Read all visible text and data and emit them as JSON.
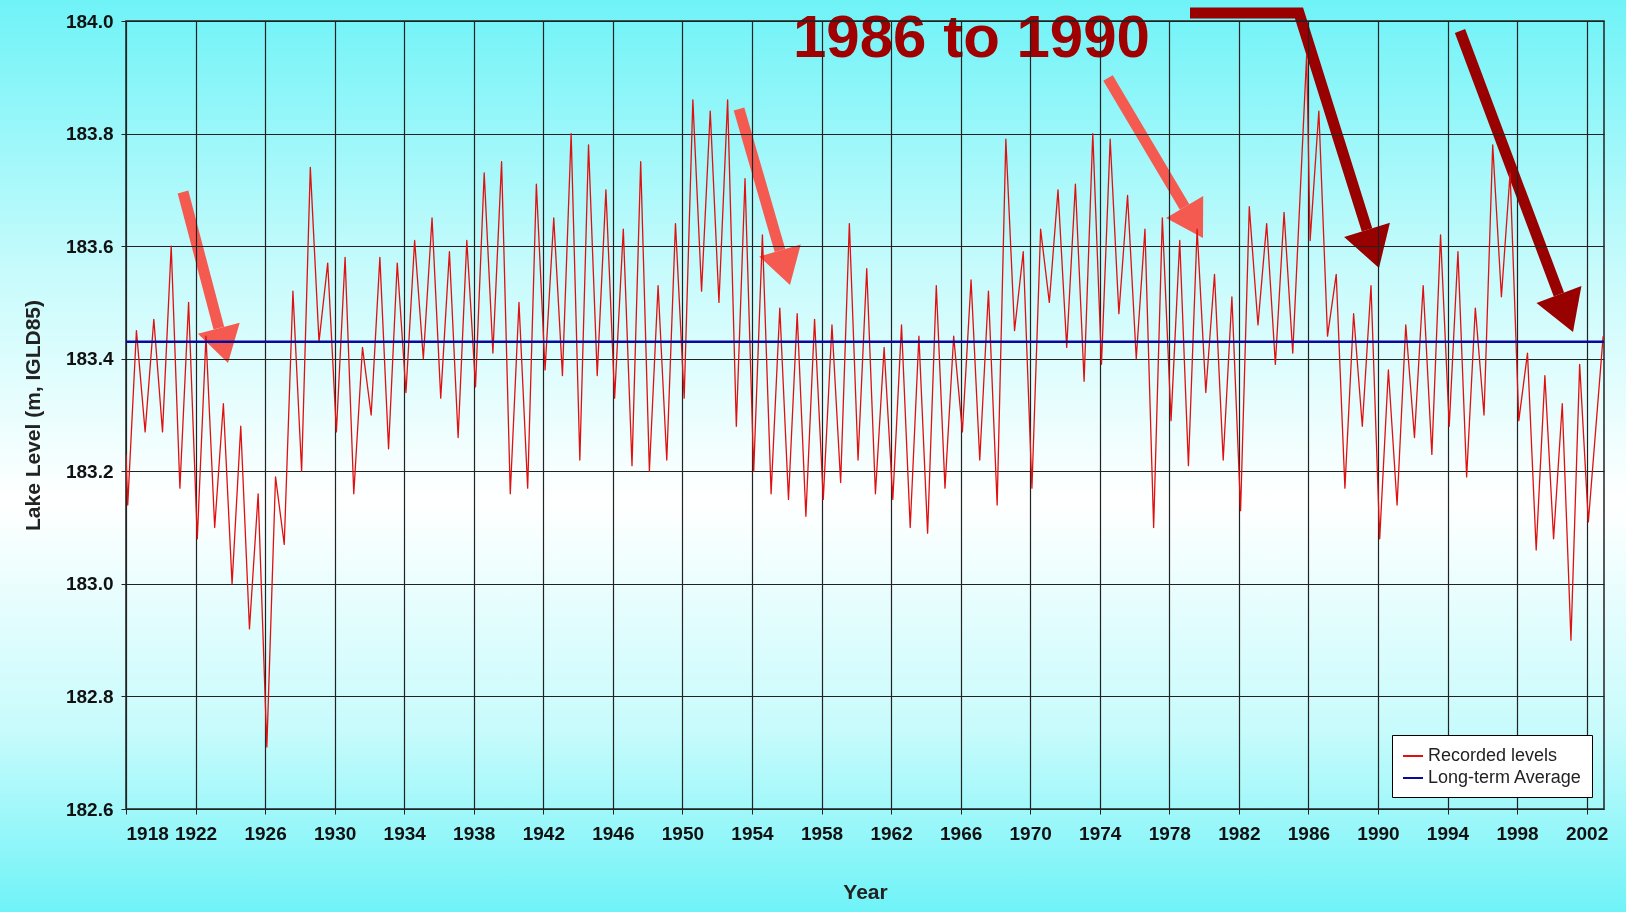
{
  "chart_data": {
    "type": "line",
    "xlabel": "Year",
    "ylabel": "Lake Level (m, IGLD85)",
    "annotations": [
      "1986 to 1990"
    ],
    "xlim": [
      1918,
      2003
    ],
    "xticks": [
      1918,
      1922,
      1926,
      1930,
      1934,
      1938,
      1942,
      1946,
      1950,
      1954,
      1958,
      1962,
      1966,
      1970,
      1974,
      1978,
      1982,
      1986,
      1990,
      1994,
      1998,
      2002
    ],
    "ylim": [
      182.6,
      184.0
    ],
    "yticks": [
      182.6,
      182.8,
      {
        "value": 183,
        "label": "183.0"
      },
      183.2,
      183.4,
      183.6,
      183.8,
      {
        "value": 184,
        "label": "184.0"
      }
    ],
    "grid": true,
    "legend": "bottom right",
    "series": [
      {
        "name": "Recorded levels",
        "color": "#e01010",
        "x": [
          1918.0,
          1918.1,
          1918.6,
          1919.1,
          1919.6,
          1920.1,
          1920.6,
          1921.1,
          1921.6,
          1922.1,
          1922.6,
          1923.1,
          1923.6,
          1924.1,
          1924.6,
          1925.1,
          1925.6,
          1926.1,
          1926.6,
          1927.1,
          1927.6,
          1928.1,
          1928.6,
          1929.1,
          1929.6,
          1930.1,
          1930.6,
          1931.1,
          1931.6,
          1932.1,
          1932.6,
          1933.1,
          1933.6,
          1934.1,
          1934.6,
          1935.1,
          1935.6,
          1936.1,
          1936.6,
          1937.1,
          1937.6,
          1938.1,
          1938.6,
          1939.1,
          1939.6,
          1940.1,
          1940.6,
          1941.1,
          1941.6,
          1942.1,
          1942.6,
          1943.1,
          1943.6,
          1944.1,
          1944.6,
          1945.1,
          1945.6,
          1946.1,
          1946.6,
          1947.1,
          1947.6,
          1948.1,
          1948.6,
          1949.1,
          1949.6,
          1950.1,
          1950.6,
          1951.1,
          1951.6,
          1952.1,
          1952.6,
          1953.1,
          1953.6,
          1954.1,
          1954.6,
          1955.1,
          1955.6,
          1956.1,
          1956.6,
          1957.1,
          1957.6,
          1958.1,
          1958.6,
          1959.1,
          1959.6,
          1960.1,
          1960.6,
          1961.1,
          1961.6,
          1962.1,
          1962.6,
          1963.1,
          1963.6,
          1964.1,
          1964.6,
          1965.1,
          1965.6,
          1966.1,
          1966.6,
          1967.1,
          1967.6,
          1968.1,
          1968.6,
          1969.1,
          1969.6,
          1970.1,
          1970.6,
          1971.1,
          1971.6,
          1972.1,
          1972.6,
          1973.1,
          1973.6,
          1974.1,
          1974.6,
          1975.1,
          1975.6,
          1976.1,
          1976.6,
          1977.1,
          1977.6,
          1978.1,
          1978.6,
          1979.1,
          1979.6,
          1980.1,
          1980.6,
          1981.1,
          1981.6,
          1982.1,
          1982.6,
          1983.1,
          1983.6,
          1984.1,
          1984.6,
          1985.1,
          1985.9,
          1986.1,
          1986.6,
          1987.1,
          1987.6,
          1988.1,
          1988.6,
          1989.1,
          1989.6,
          1990.1,
          1990.6,
          1991.1,
          1991.6,
          1992.1,
          1992.6,
          1993.1,
          1993.6,
          1994.1,
          1994.6,
          1995.1,
          1995.6,
          1996.1,
          1996.6,
          1997.1,
          1997.6,
          1998.1,
          1998.6,
          1999.1,
          1999.6,
          2000.1,
          2000.6,
          2001.1,
          2001.6,
          2002.1,
          2002.95
        ],
        "values": [
          183.23,
          183.14,
          183.45,
          183.27,
          183.47,
          183.27,
          183.6,
          183.17,
          183.5,
          183.08,
          183.44,
          183.1,
          183.32,
          183.0,
          183.28,
          182.92,
          183.16,
          182.71,
          183.19,
          183.07,
          183.52,
          183.2,
          183.74,
          183.43,
          183.57,
          183.27,
          183.58,
          183.16,
          183.42,
          183.3,
          183.58,
          183.24,
          183.57,
          183.34,
          183.61,
          183.4,
          183.65,
          183.33,
          183.59,
          183.26,
          183.61,
          183.35,
          183.73,
          183.41,
          183.75,
          183.16,
          183.5,
          183.17,
          183.71,
          183.38,
          183.65,
          183.37,
          183.8,
          183.22,
          183.78,
          183.37,
          183.7,
          183.33,
          183.63,
          183.21,
          183.75,
          183.2,
          183.53,
          183.22,
          183.64,
          183.33,
          183.86,
          183.52,
          183.84,
          183.5,
          183.86,
          183.28,
          183.72,
          183.2,
          183.62,
          183.16,
          183.49,
          183.15,
          183.48,
          183.12,
          183.47,
          183.15,
          183.46,
          183.18,
          183.64,
          183.22,
          183.56,
          183.16,
          183.42,
          183.15,
          183.46,
          183.1,
          183.44,
          183.09,
          183.53,
          183.17,
          183.44,
          183.27,
          183.54,
          183.22,
          183.52,
          183.14,
          183.79,
          183.45,
          183.59,
          183.17,
          183.63,
          183.5,
          183.7,
          183.42,
          183.71,
          183.36,
          183.8,
          183.39,
          183.79,
          183.48,
          183.69,
          183.4,
          183.63,
          183.1,
          183.65,
          183.29,
          183.61,
          183.21,
          183.63,
          183.34,
          183.55,
          183.22,
          183.51,
          183.13,
          183.67,
          183.46,
          183.64,
          183.39,
          183.66,
          183.41,
          183.94,
          183.61,
          183.84,
          183.44,
          183.55,
          183.17,
          183.48,
          183.28,
          183.53,
          183.08,
          183.38,
          183.14,
          183.46,
          183.26,
          183.53,
          183.23,
          183.62,
          183.28,
          183.59,
          183.19,
          183.49,
          183.3,
          183.78,
          183.51,
          183.73,
          183.29,
          183.41,
          183.06,
          183.37,
          183.08,
          183.32,
          182.9,
          183.39,
          183.11,
          183.44
        ]
      },
      {
        "name": "Long-term Average",
        "color": "#0a0a9a",
        "x": [
          1918,
          2003
        ],
        "values": [
          183.43,
          183.43
        ]
      }
    ]
  }
}
